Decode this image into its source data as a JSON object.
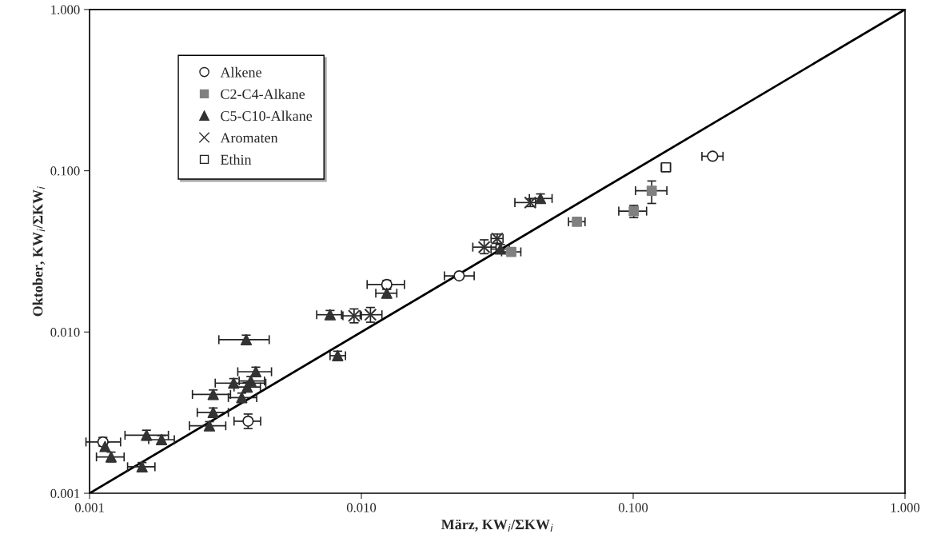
{
  "chart_data": {
    "type": "scatter",
    "xlabel": "März, KW$_{i}$/ΣKW$_{i}$",
    "ylabel": "Oktober, KW$_{i}$/ΣKW$_{i}$",
    "log": "xy",
    "xlim": [
      0.001,
      1
    ],
    "ylim": [
      0.001,
      1
    ],
    "xticks": [
      {
        "value": 0.001,
        "label": "0.001"
      },
      {
        "value": 0.01,
        "label": "0.010"
      },
      {
        "value": 0.1,
        "label": "0.100"
      },
      {
        "value": 1,
        "label": "1.000"
      }
    ],
    "yticks": [
      {
        "value": 0.001,
        "label": "0.001"
      },
      {
        "value": 0.01,
        "label": "0.010"
      },
      {
        "value": 0.1,
        "label": "0.100"
      },
      {
        "value": 1,
        "label": "1.000"
      }
    ],
    "grid": false,
    "legend": "top left",
    "series": [
      {
        "type": "line",
        "color": "#000000",
        "marker": "none",
        "x": [
          0.001,
          1
        ],
        "values": [
          0.001,
          1
        ]
      },
      {
        "name": "Alkene",
        "color": "#ffffff",
        "marker": "circle",
        "x": [
          0.00112,
          0.00383,
          0.0124,
          0.0229,
          0.196
        ],
        "values": [
          0.00208,
          0.0028,
          0.0197,
          0.0223,
          0.123
        ],
        "xerrors": [
          [
            0.00097,
            0.0013
          ],
          [
            0.0034,
            0.00426
          ],
          [
            0.0105,
            0.0144
          ],
          [
            0.0202,
            0.026
          ],
          [
            0.179,
            0.214
          ]
        ],
        "errors": [
          [
            0.00196,
            0.00222
          ],
          [
            0.00252,
            0.0031
          ],
          [
            0.0184,
            0.0209
          ],
          [
            0.0215,
            0.0231
          ],
          [
            0.118,
            0.128
          ]
        ]
      },
      {
        "name": "C2-C4-Alkane",
        "color": "#808080",
        "marker": "square",
        "x": [
          0.0356,
          0.0621,
          0.1005,
          0.117
        ],
        "values": [
          0.0314,
          0.0483,
          0.0562,
          0.0752
        ],
        "xerrors": [
          [
            0.0328,
            0.0386
          ],
          [
            0.0578,
            0.0665
          ],
          [
            0.0885,
            0.112
          ],
          [
            0.102,
            0.133
          ]
        ],
        "errors": [
          [
            0.0297,
            0.0331
          ],
          null,
          [
            0.0512,
            0.061
          ],
          [
            0.0627,
            0.0864
          ]
        ]
      },
      {
        "name": "C5-C10-Alkane",
        "color": "#333333",
        "marker": "triangle",
        "x": [
          0.00114,
          0.0012,
          0.00156,
          0.00162,
          0.00184,
          0.00276,
          0.00285,
          0.00285,
          0.00363,
          0.0038,
          0.00339,
          0.00392,
          0.00409,
          0.00377,
          0.00818,
          0.00767,
          0.0124,
          0.0325,
          0.0456
        ],
        "values": [
          0.00195,
          0.00168,
          0.00146,
          0.00229,
          0.00215,
          0.00262,
          0.00317,
          0.0041,
          0.00392,
          0.00456,
          0.00482,
          0.00497,
          0.00567,
          0.00896,
          0.00713,
          0.0128,
          0.0174,
          0.0327,
          0.0673
        ],
        "xerrors": [
          null,
          [
            0.00106,
            0.00134
          ],
          [
            0.00138,
            0.00174
          ],
          [
            0.00135,
            0.00195
          ],
          [
            0.00165,
            0.00205
          ],
          [
            0.00233,
            0.00317
          ],
          [
            0.00249,
            0.00324
          ],
          [
            0.00239,
            0.0033
          ],
          [
            0.00324,
            0.00412
          ],
          [
            0.0034,
            0.00425
          ],
          [
            0.0029,
            0.00445
          ],
          [
            0.00355,
            0.0044
          ],
          [
            0.00351,
            0.00467
          ],
          [
            0.00299,
            0.00458
          ],
          [
            0.00767,
            0.00874
          ],
          [
            0.00685,
            0.00845
          ],
          [
            0.0113,
            0.0135
          ],
          [
            0.03,
            0.035
          ],
          [
            0.0415,
            0.0503
          ]
        ],
        "errors": [
          [
            0.00184,
            0.00207
          ],
          [
            0.00157,
            0.0018
          ],
          [
            0.00138,
            0.00155
          ],
          [
            0.00214,
            0.00246
          ],
          [
            0.00203,
            0.00228
          ],
          [
            0.00246,
            0.00278
          ],
          [
            0.00297,
            0.00338
          ],
          [
            0.00385,
            0.00437
          ],
          [
            0.00368,
            0.00418
          ],
          [
            0.00428,
            0.00486
          ],
          [
            0.00452,
            0.00514
          ],
          [
            0.00467,
            0.0053
          ],
          [
            0.00532,
            0.00605
          ],
          [
            0.0084,
            0.00956
          ],
          [
            0.00669,
            0.0076
          ],
          [
            0.012,
            0.0136
          ],
          [
            0.0163,
            0.0185
          ],
          [
            0.0307,
            0.0349
          ],
          [
            0.0631,
            0.0718
          ]
        ]
      },
      {
        "name": "Aromaten",
        "color": "#333333",
        "marker": "cross",
        "x": [
          0.0094,
          0.0108,
          0.0283,
          0.0316,
          0.0418
        ],
        "values": [
          0.0126,
          0.0128,
          0.0336,
          0.038,
          0.0635
        ],
        "xerrors": [
          [
            0.00855,
            0.01
          ],
          [
            0.0099,
            0.0119
          ],
          [
            0.0257,
            0.0313
          ],
          [
            0.03,
            0.0332
          ],
          [
            0.0367,
            0.0437
          ]
        ],
        "errors": [
          [
            0.0114,
            0.0139
          ],
          [
            0.0115,
            0.0142
          ],
          [
            0.0306,
            0.0373
          ],
          [
            0.0355,
            0.0405
          ],
          [
            0.06,
            0.067
          ]
        ]
      },
      {
        "name": "Ethin",
        "color": "#ffffff",
        "marker": "square",
        "x": [
          0.132
        ],
        "values": [
          0.105
        ],
        "xerrors": [
          [
            0.127,
            0.137
          ]
        ],
        "errors": [
          [
            0.101,
            0.109
          ]
        ]
      }
    ]
  }
}
